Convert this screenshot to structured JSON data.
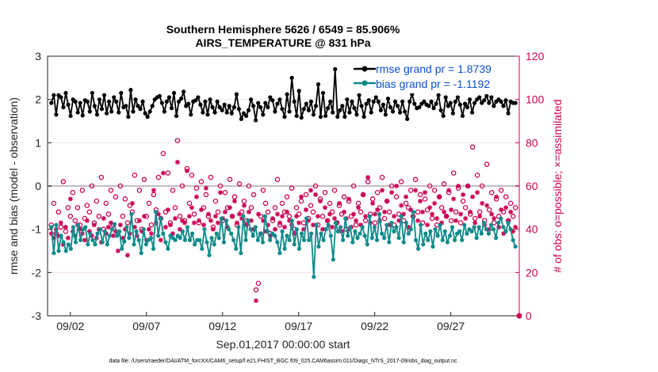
{
  "chart_data": {
    "type": "line",
    "title": "Southern Hemisphere 5626 / 6549 = 85.906%",
    "subtitle": "AIRS_TEMPERATURE @ 831 hPa",
    "xlabel": "Sep.01,2017 00:00:00 start",
    "ylabel": "rmse and bias (model - observation)",
    "ylabel_right": "# of obs: o=possible; ×=assimilated",
    "ylim": [
      -3,
      3
    ],
    "ylim_right": [
      0,
      120
    ],
    "xlim": [
      0.5,
      31.5
    ],
    "yticks": [
      "-3",
      "-2",
      "-1",
      "0",
      "1",
      "2",
      "3"
    ],
    "yticks_right": [
      "0",
      "20",
      "40",
      "60",
      "80",
      "100",
      "120"
    ],
    "xticks": [
      {
        "x": 2,
        "label": "09/02"
      },
      {
        "x": 7,
        "label": "09/07"
      },
      {
        "x": 12,
        "label": "09/12"
      },
      {
        "x": 17,
        "label": "09/17"
      },
      {
        "x": 22,
        "label": "09/22"
      },
      {
        "x": 27,
        "label": "09/27"
      }
    ],
    "footer": "data file: /Users/raeder/DAI/ATM_forcXX/CAM6_setup/f.e21.FHIST_BGC.f09_025.CAM6assim.011/Diags_NTrS_2017-09/obs_diag_output.nc",
    "colors": {
      "rmse": "#000000",
      "bias": "#0f8a8a",
      "obs": "#cc0055",
      "zero": "#aaaaaa",
      "legend_text": "#0a4fd6"
    },
    "series": [
      {
        "name": "rmse grand pr = 1.8739",
        "values": [
          1.92,
          2.1,
          1.65,
          2.1,
          2.05,
          1.82,
          2.15,
          1.88,
          1.62,
          2.0,
          1.95,
          1.7,
          1.92,
          1.63,
          1.98,
          1.95,
          1.72,
          2.15,
          1.85,
          1.65,
          2.0,
          1.78,
          2.1,
          1.68,
          1.95,
          1.72,
          2.05,
          1.95,
          1.7,
          2.15,
          1.82,
          1.85,
          1.6,
          2.22,
          1.72,
          2.0,
          1.85,
          1.78,
          1.95,
          1.68,
          1.6,
          1.72,
          1.85,
          2.0,
          2.05,
          2.08,
          1.92,
          1.72,
          1.95,
          2.05,
          1.8,
          2.15,
          1.62,
          1.95,
          2.02,
          2.18,
          1.85,
          1.9,
          1.65,
          1.95,
          1.98,
          2.05,
          1.88,
          1.7,
          1.95,
          1.65,
          2.0,
          1.82,
          1.7,
          1.95,
          1.82,
          1.75,
          1.88,
          1.7,
          1.85,
          1.68,
          1.82,
          2.12,
          1.78,
          1.55,
          1.68,
          1.62,
          1.75,
          2.0,
          1.85,
          1.52,
          1.92,
          1.82,
          1.65,
          1.92,
          1.82,
          2.05,
          1.98,
          1.72,
          1.9,
          2.0,
          1.78,
          1.6,
          2.12,
          1.72,
          2.5,
          1.95,
          1.62,
          2.2,
          1.58,
          1.78,
          1.9,
          1.75,
          1.95,
          1.65,
          1.85,
          2.35,
          1.6,
          2.15,
          1.62,
          1.8,
          1.95,
          1.7,
          2.7,
          1.6,
          1.75,
          1.85,
          1.6,
          2.0,
          1.7,
          1.95,
          1.8,
          1.65,
          2.1,
          1.85,
          1.6,
          1.9,
          1.98,
          1.7,
          1.95,
          2.05,
          1.95,
          1.75,
          1.88,
          1.65,
          2.02,
          1.82,
          1.72,
          1.95,
          1.85,
          1.7,
          1.95,
          1.72,
          1.55,
          1.95,
          2.12,
          1.9,
          1.8,
          1.82,
          1.9,
          1.95,
          1.88,
          1.85,
          1.95,
          1.8,
          1.9,
          2.1,
          1.75,
          1.62,
          2.05,
          1.85,
          1.92,
          1.68,
          1.95,
          2.05,
          1.88,
          1.62,
          1.9,
          1.82,
          2.0,
          1.7,
          1.92,
          2.0,
          2.05,
          1.92,
          1.98,
          2.08,
          1.92,
          2.05,
          1.85,
          1.95,
          2.0,
          1.95,
          1.85,
          1.98,
          1.68,
          1.95,
          1.92,
          1.92
        ]
      },
      {
        "name": "bias grand pr = -1.1192",
        "values": [
          -0.95,
          -1.55,
          -0.9,
          -1.5,
          -1.15,
          -1.3,
          -1.5,
          -1.35,
          -1.45,
          -0.95,
          -1.3,
          -0.9,
          -1.25,
          -1.0,
          -0.95,
          -1.35,
          -1.1,
          -1.25,
          -1.35,
          -1.1,
          -1.0,
          -1.3,
          -1.05,
          -1.35,
          -1.15,
          -1.0,
          -0.88,
          -1.15,
          -1.05,
          -1.45,
          -1.28,
          -0.95,
          -1.2,
          -0.65,
          -1.35,
          -1.05,
          -1.25,
          -1.55,
          -1.0,
          -1.35,
          -1.25,
          -1.2,
          -1.45,
          -0.6,
          -1.15,
          -0.75,
          -1.1,
          -1.3,
          -1.45,
          -1.15,
          -1.2,
          -1.25,
          -1.15,
          -1.2,
          -1.05,
          -1.25,
          -0.95,
          -1.25,
          -1.1,
          -1.35,
          -1.25,
          -1.25,
          -1.45,
          -1.0,
          -1.3,
          -1.6,
          -1.2,
          -1.35,
          -1.1,
          -1.2,
          -0.75,
          -1.3,
          -0.8,
          -1.0,
          -1.1,
          -1.25,
          -1.45,
          -0.95,
          -1.55,
          -0.7,
          -1.25,
          -0.8,
          -1.0,
          -1.15,
          -0.95,
          -1.25,
          -1.1,
          -1.3,
          -0.7,
          -1.05,
          -1.25,
          -1.1,
          -1.15,
          -1.3,
          -1.55,
          -1.05,
          -1.45,
          -1.15,
          -1.25,
          -0.8,
          -1.35,
          -1.0,
          -1.45,
          -1.1,
          -1.25,
          -0.75,
          -1.25,
          -1.1,
          -2.1,
          -0.9,
          -1.4,
          -1.1,
          -1.25,
          -1.0,
          -0.9,
          -1.15,
          -1.7,
          -0.85,
          -1.05,
          -0.95,
          -1.25,
          -0.75,
          -1.15,
          -0.95,
          -1.3,
          -1.05,
          -1.2,
          -1.1,
          -0.95,
          -1.15,
          -1.35,
          -0.7,
          -1.2,
          -0.95,
          -1.25,
          -0.65,
          -1.1,
          -1.2,
          -0.9,
          -1.3,
          -0.85,
          -1.05,
          -0.95,
          -1.2,
          -0.7,
          -1.3,
          -0.85,
          -1.1,
          -1.0,
          -0.6,
          -1.25,
          -1.45,
          -0.9,
          -1.35,
          -1.1,
          -1.25,
          -1.05,
          -1.4,
          -1.0,
          -1.15,
          -0.9,
          -1.25,
          -1.05,
          -1.3,
          -1.15,
          -0.95,
          -1.25,
          -1.1,
          -1.05,
          -1.25,
          -0.9,
          -1.1,
          -1.0,
          -1.05,
          -0.95,
          -1.2,
          -0.95,
          -1.1,
          -0.85,
          -1.0,
          -1.1,
          -0.9,
          -1.0,
          -1.2,
          -0.85,
          -0.75,
          -0.95,
          -1.05,
          -0.85,
          -1.0,
          -1.25,
          -1.4
        ]
      },
      {
        "name": "possible",
        "axis": "right",
        "marker": "o",
        "values": [
          42,
          52,
          38,
          48,
          41,
          62,
          39,
          50,
          46,
          57,
          44,
          50,
          42,
          58,
          45,
          51,
          48,
          60,
          43,
          53,
          46,
          64,
          40,
          52,
          47,
          58,
          42,
          55,
          38,
          60,
          46,
          54,
          43,
          51,
          48,
          65,
          44,
          58,
          40,
          63,
          46,
          52,
          42,
          56,
          49,
          64,
          45,
          75,
          48,
          66,
          43,
          58,
          50,
          81,
          46,
          60,
          44,
          68,
          52,
          65,
          47,
          59,
          43,
          62,
          50,
          56,
          46,
          64,
          41,
          53,
          48,
          60,
          44,
          57,
          50,
          63,
          46,
          55,
          42,
          61,
          48,
          53,
          44,
          60,
          50,
          56,
          12,
          15,
          46,
          58,
          52,
          48,
          38,
          44,
          50,
          63,
          42,
          52,
          48,
          55,
          46,
          59,
          40,
          50,
          47,
          53,
          43,
          56,
          45,
          51,
          48,
          60,
          42,
          54,
          46,
          57,
          44,
          52,
          48,
          58,
          43,
          51,
          47,
          55,
          40,
          53,
          46,
          60,
          42,
          52,
          48,
          56,
          44,
          62,
          47,
          54,
          43,
          57,
          50,
          64,
          45,
          53,
          48,
          60,
          42,
          55,
          47,
          62,
          44,
          52,
          50,
          58,
          46,
          63,
          48,
          56,
          43,
          54,
          49,
          60,
          45,
          58,
          42,
          55,
          50,
          61,
          46,
          57,
          44,
          66,
          48,
          59,
          43,
          53,
          50,
          60,
          47,
          78,
          45,
          65,
          48,
          60,
          44,
          70,
          49,
          57,
          43,
          54,
          46,
          58,
          48,
          55,
          44,
          52,
          46,
          50
        ]
      },
      {
        "name": "assimilated",
        "axis": "right",
        "marker": "*",
        "values": [
          38,
          36,
          40,
          37,
          43,
          33,
          41,
          36,
          54,
          39,
          37,
          42,
          40,
          38,
          35,
          44,
          39,
          37,
          42,
          36,
          40,
          34,
          45,
          38,
          41,
          43,
          37,
          39,
          30,
          42,
          36,
          40,
          28,
          38,
          52,
          41,
          37,
          44,
          39,
          46,
          35,
          40,
          38,
          58,
          43,
          47,
          35,
          66,
          41,
          49,
          42,
          38,
          45,
          71,
          40,
          44,
          43,
          67,
          46,
          50,
          43,
          55,
          44,
          49,
          42,
          59,
          47,
          44,
          40,
          46,
          43,
          57,
          45,
          48,
          41,
          50,
          46,
          53,
          43,
          47,
          45,
          51,
          42,
          48,
          44,
          40,
          7,
          47,
          38,
          44,
          39,
          42,
          37,
          45,
          40,
          47,
          43,
          46,
          41,
          48,
          44,
          42,
          38,
          46,
          43,
          55,
          40,
          49,
          44,
          58,
          42,
          56,
          46,
          53,
          40,
          50,
          44,
          47,
          41,
          45,
          43,
          52,
          39,
          48,
          45,
          54,
          41,
          47,
          44,
          50,
          42,
          56,
          46,
          64,
          43,
          52,
          47,
          49,
          44,
          58,
          48,
          53,
          42,
          57,
          46,
          60,
          44,
          51,
          47,
          55,
          41,
          49,
          46,
          58,
          44,
          53,
          48,
          57,
          42,
          50,
          47,
          52,
          45,
          55,
          43,
          48,
          46,
          58,
          49,
          54,
          44,
          60,
          47,
          56,
          45,
          60,
          48,
          55,
          43,
          57,
          46,
          52,
          42,
          51,
          40,
          47,
          45,
          55,
          41,
          49,
          38,
          50,
          44,
          48,
          39,
          41
        ]
      }
    ]
  }
}
